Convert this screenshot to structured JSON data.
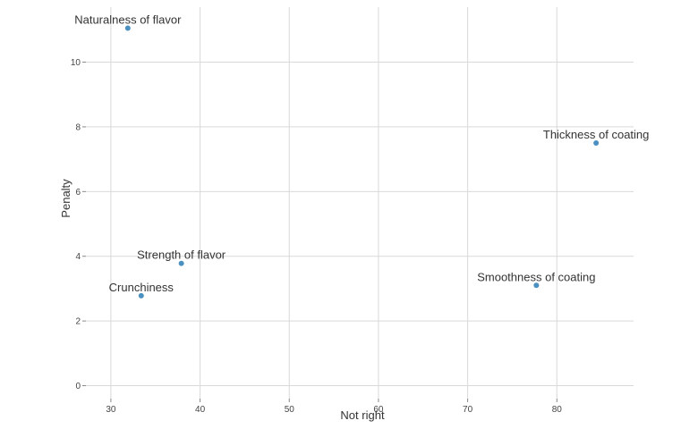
{
  "chart_data": {
    "type": "scatter",
    "xlabel": "Not right",
    "ylabel": "Penalty",
    "xlim": [
      27.2,
      88.6
    ],
    "ylim": [
      -0.4,
      11.7
    ],
    "xticks": [
      30,
      40,
      50,
      60,
      70,
      80
    ],
    "yticks": [
      0,
      2,
      4,
      6,
      8,
      10
    ],
    "grid": true,
    "point_color": "#4a90c0",
    "points": [
      {
        "label": "Naturalness of flavor",
        "x": 31.9,
        "y": 11.05
      },
      {
        "label": "Thickness of coating",
        "x": 84.4,
        "y": 7.5
      },
      {
        "label": "Strength of flavor",
        "x": 37.9,
        "y": 3.78
      },
      {
        "label": "Crunchiness",
        "x": 33.4,
        "y": 2.78
      },
      {
        "label": "Smoothness of coating",
        "x": 77.7,
        "y": 3.1
      }
    ]
  }
}
